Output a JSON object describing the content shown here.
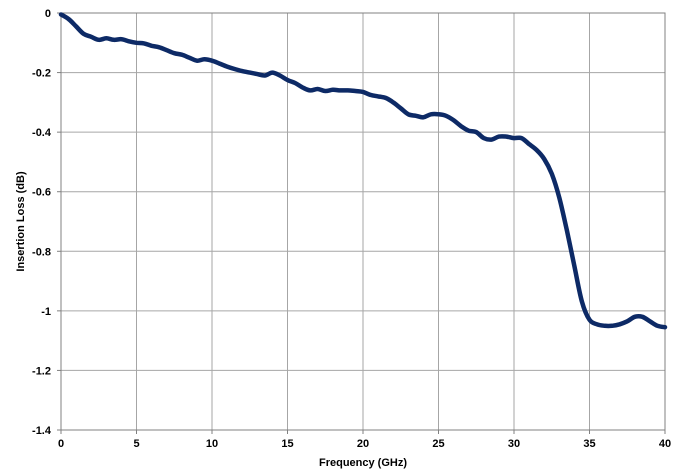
{
  "chart_data": {
    "type": "line",
    "title": "",
    "xlabel": "Frequency (GHz)",
    "ylabel": "Insertion Loss (dB)",
    "xlim": [
      0,
      40
    ],
    "ylim": [
      -1.4,
      0
    ],
    "xticks": [
      0,
      5,
      10,
      15,
      20,
      25,
      30,
      35,
      40
    ],
    "yticks": [
      0,
      -0.2,
      -0.4,
      -0.6,
      -0.8,
      -1,
      -1.2,
      -1.4
    ],
    "xtick_labels": [
      "0",
      "5",
      "10",
      "15",
      "20",
      "25",
      "30",
      "35",
      "40"
    ],
    "ytick_labels": [
      "0",
      "-0.2",
      "-0.4",
      "-0.6",
      "-0.8",
      "-1",
      "-1.2",
      "-1.4"
    ],
    "grid": true,
    "legend": "none",
    "series_color": "#0d2a66",
    "series": [
      {
        "x": [
          0,
          0.5,
          1,
          1.5,
          2,
          2.5,
          3,
          3.5,
          4,
          4.5,
          5,
          5.5,
          6,
          6.5,
          7,
          7.5,
          8,
          8.5,
          9,
          9.5,
          10,
          10.5,
          11,
          11.5,
          12,
          12.5,
          13,
          13.5,
          14,
          14.5,
          15,
          15.5,
          16,
          16.5,
          17,
          17.5,
          18,
          18.5,
          19,
          19.5,
          20,
          20.5,
          21,
          21.5,
          22,
          22.5,
          23,
          23.5,
          24,
          24.5,
          25,
          25.5,
          26,
          26.5,
          27,
          27.5,
          28,
          28.5,
          29,
          29.5,
          30,
          30.5,
          31,
          31.5,
          32,
          32.5,
          33,
          33.5,
          34,
          34.5,
          35,
          35.5,
          36,
          36.5,
          37,
          37.5,
          38,
          38.5,
          39,
          39.5,
          40
        ],
        "values": [
          -0.005,
          -0.02,
          -0.045,
          -0.07,
          -0.08,
          -0.09,
          -0.085,
          -0.09,
          -0.088,
          -0.095,
          -0.1,
          -0.102,
          -0.11,
          -0.115,
          -0.125,
          -0.135,
          -0.14,
          -0.15,
          -0.16,
          -0.155,
          -0.16,
          -0.17,
          -0.18,
          -0.188,
          -0.195,
          -0.2,
          -0.205,
          -0.21,
          -0.2,
          -0.21,
          -0.225,
          -0.235,
          -0.25,
          -0.26,
          -0.255,
          -0.262,
          -0.258,
          -0.26,
          -0.26,
          -0.262,
          -0.265,
          -0.275,
          -0.28,
          -0.285,
          -0.3,
          -0.32,
          -0.34,
          -0.345,
          -0.35,
          -0.34,
          -0.34,
          -0.345,
          -0.36,
          -0.38,
          -0.395,
          -0.4,
          -0.42,
          -0.425,
          -0.415,
          -0.415,
          -0.42,
          -0.42,
          -0.44,
          -0.46,
          -0.49,
          -0.54,
          -0.62,
          -0.73,
          -0.85,
          -0.97,
          -1.03,
          -1.045,
          -1.05,
          -1.05,
          -1.045,
          -1.035,
          -1.02,
          -1.02,
          -1.035,
          -1.05,
          -1.055
        ]
      }
    ]
  }
}
